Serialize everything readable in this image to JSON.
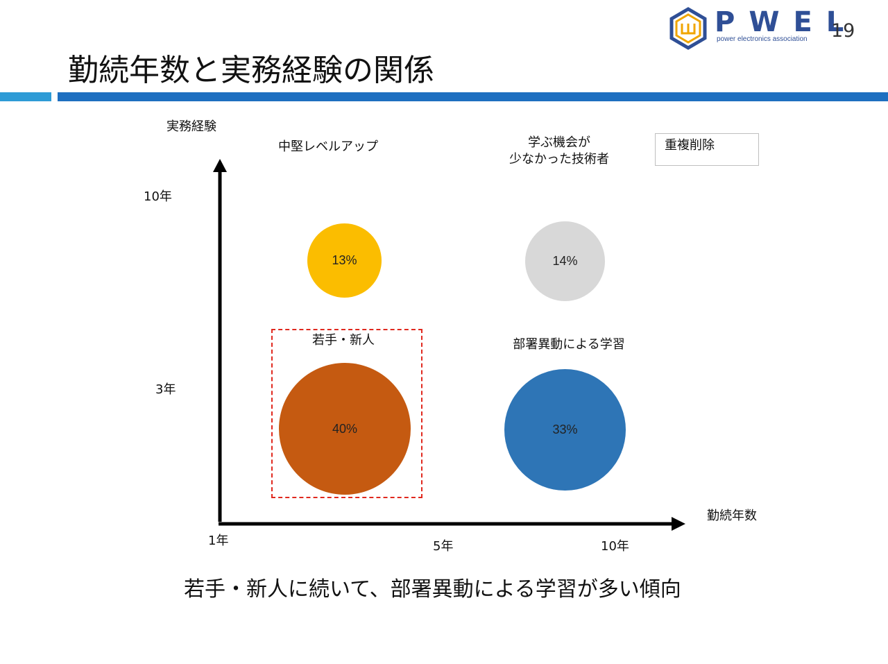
{
  "slide": {
    "title": "勤続年数と実務経験の関係",
    "page_number": "19",
    "logo": {
      "word": "PWEL",
      "tagline": "power electronics association"
    },
    "conclusion": "若手・新人に続いて、部署異動による学習が多い傾向"
  },
  "diagram": {
    "y_axis": {
      "label": "実務経験",
      "ticks": [
        "10年",
        "3年"
      ]
    },
    "x_axis": {
      "label": "勤続年数",
      "ticks": [
        "1年",
        "5年",
        "10年"
      ]
    },
    "legend_box": "重複削除",
    "quadrants": [
      {
        "id": "mid-level-up",
        "label": "中堅レベルアップ",
        "value": "13%",
        "color": "#fbbd00"
      },
      {
        "id": "few-opportunities",
        "label": "学ぶ機会が\n少なかった技術者",
        "value": "14%",
        "color": "#d8d8d8"
      },
      {
        "id": "young-new",
        "label": "若手・新人",
        "value": "40%",
        "color": "#c55a11",
        "highlighted": true
      },
      {
        "id": "dept-transfer",
        "label": "部署異動による学習",
        "value": "33%",
        "color": "#2e75b6"
      }
    ],
    "colors": {
      "axis": "#000000",
      "highlight_border": "#e0281e",
      "accent_bar": "#1e6fc0",
      "accent_bar_light": "#2e9bd6",
      "brand": "#2f4f96"
    }
  }
}
